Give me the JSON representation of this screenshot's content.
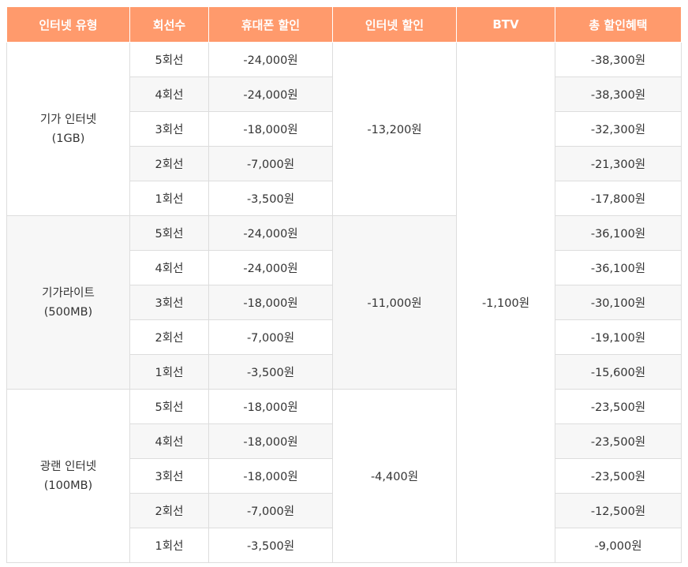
{
  "headers": [
    "인터넷 유형",
    "회선수",
    "휴대폰 할인",
    "인터넷 할인",
    "BTV",
    "총 할인혜택"
  ],
  "btv": "-1,100원",
  "groups": [
    {
      "name": "기가 인터넷",
      "sub": "(1GB)",
      "internet": "-13,200원",
      "rows": [
        {
          "lines": "5회선",
          "phone": "-24,000원",
          "total": "-38,300원"
        },
        {
          "lines": "4회선",
          "phone": "-24,000원",
          "total": "-38,300원"
        },
        {
          "lines": "3회선",
          "phone": "-18,000원",
          "total": "-32,300원"
        },
        {
          "lines": "2회선",
          "phone": "-7,000원",
          "total": "-21,300원"
        },
        {
          "lines": "1회선",
          "phone": "-3,500원",
          "total": "-17,800원"
        }
      ]
    },
    {
      "name": "기가라이트",
      "sub": "(500MB)",
      "internet": "-11,000원",
      "rows": [
        {
          "lines": "5회선",
          "phone": "-24,000원",
          "total": "-36,100원"
        },
        {
          "lines": "4회선",
          "phone": "-24,000원",
          "total": "-36,100원"
        },
        {
          "lines": "3회선",
          "phone": "-18,000원",
          "total": "-30,100원"
        },
        {
          "lines": "2회선",
          "phone": "-7,000원",
          "total": "-19,100원"
        },
        {
          "lines": "1회선",
          "phone": "-3,500원",
          "total": "-15,600원"
        }
      ]
    },
    {
      "name": "광랜 인터넷",
      "sub": "(100MB)",
      "internet": "-4,400원",
      "rows": [
        {
          "lines": "5회선",
          "phone": "-18,000원",
          "total": "-23,500원"
        },
        {
          "lines": "4회선",
          "phone": "-18,000원",
          "total": "-23,500원"
        },
        {
          "lines": "3회선",
          "phone": "-18,000원",
          "total": "-23,500원"
        },
        {
          "lines": "2회선",
          "phone": "-7,000원",
          "total": "-12,500원"
        },
        {
          "lines": "1회선",
          "phone": "-3,500원",
          "total": "-9,000원"
        }
      ]
    }
  ]
}
